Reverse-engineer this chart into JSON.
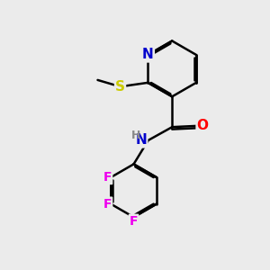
{
  "background_color": "#ebebeb",
  "atom_colors": {
    "C": "#000000",
    "N": "#0000cc",
    "S": "#cccc00",
    "O": "#ff0000",
    "F": "#ee00ee",
    "H": "#888888"
  },
  "bond_color": "#000000",
  "bond_width": 1.8,
  "dbo": 0.055
}
